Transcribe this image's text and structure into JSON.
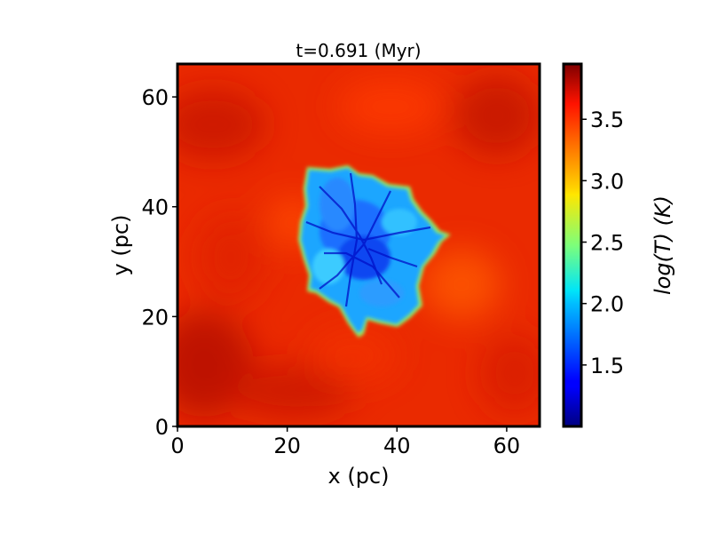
{
  "chart_data": {
    "type": "heatmap",
    "title": "t=0.691 (Myr)",
    "xlabel": "x (pc)",
    "ylabel": "y (pc)",
    "xlim": [
      0,
      66
    ],
    "ylim": [
      0,
      66
    ],
    "x_ticks": [
      0,
      20,
      40,
      60
    ],
    "y_ticks": [
      0,
      20,
      40,
      60
    ],
    "colorbar": {
      "label": "log(T) (K)",
      "colormap": "jet",
      "range": [
        1.0,
        3.95
      ],
      "ticks": [
        1.5,
        2.0,
        2.5,
        3.0,
        3.5
      ]
    },
    "field": {
      "background_logT": 3.72,
      "cold_cloud_logT": 1.7,
      "cold_cloud_core_logT": 1.2,
      "cold_cloud_center": [
        34,
        34
      ],
      "cold_cloud_extent_x": [
        22,
        50
      ],
      "cold_cloud_extent_y": [
        17,
        47
      ]
    }
  }
}
